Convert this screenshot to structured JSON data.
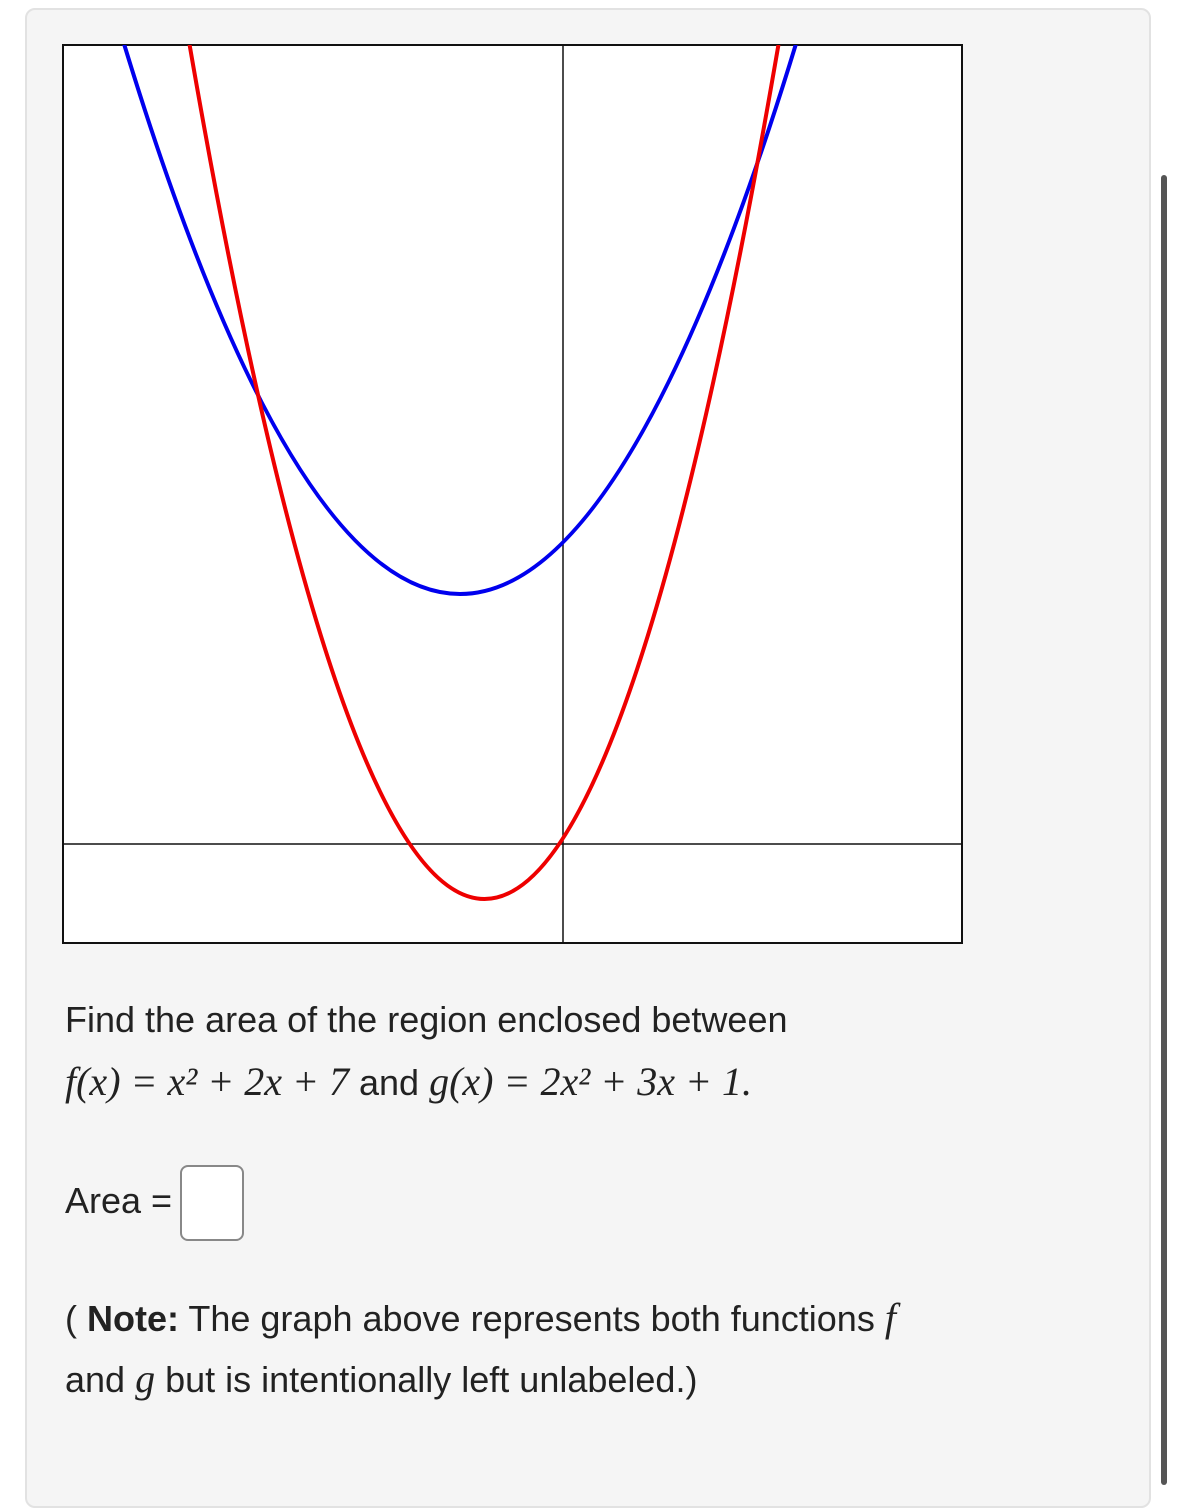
{
  "problem": {
    "intro": "Find the area of the region enclosed between",
    "f": "f(x) = x² + 2x + 7",
    "and": "and",
    "g": "g(x) = 2x² + 3x + 1."
  },
  "answer_label": "Area =",
  "note": {
    "open": "(",
    "bold": "Note:",
    "text1": "The graph above represents both functions",
    "f": "f",
    "and": "and",
    "g": "g",
    "text2": "but is intentionally left unlabeled.)"
  }
}
